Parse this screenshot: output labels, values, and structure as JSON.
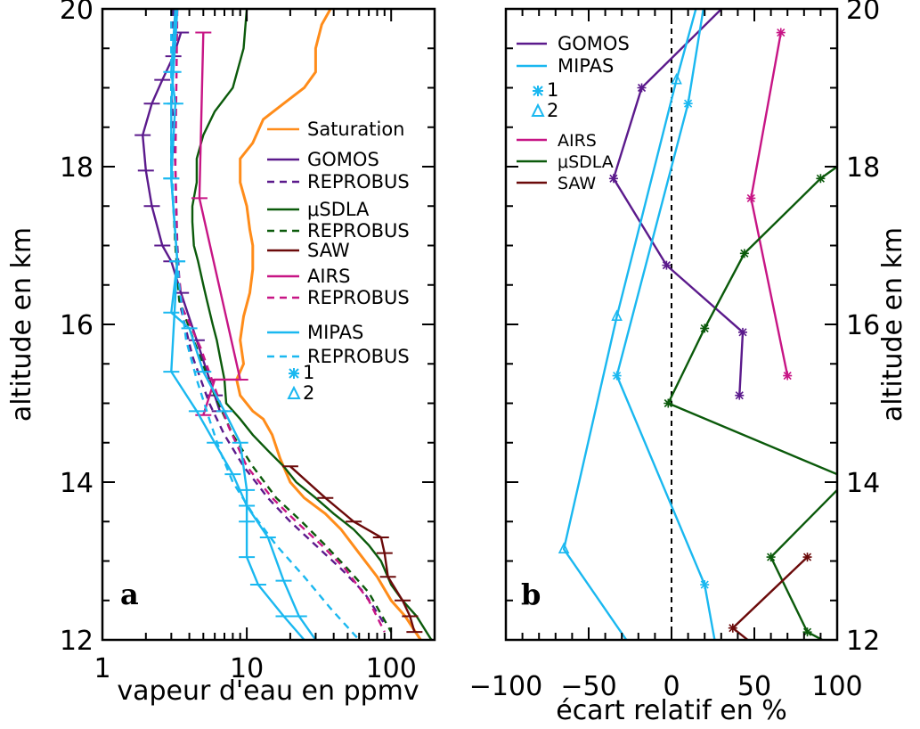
{
  "chart_data": [
    {
      "type": "line",
      "panel_label": "a",
      "xlabel": "vapeur d'eau en ppmv",
      "ylabel": "altitude en km",
      "xscale": "log",
      "xlim": [
        1,
        200
      ],
      "ylim": [
        12,
        20
      ],
      "x_ticks": [
        "1",
        "10",
        "100"
      ],
      "y_ticks": [
        "12",
        "14",
        "16",
        "18",
        "20"
      ],
      "legend_position": "right",
      "legend": [
        "Saturation",
        "GOMOS",
        "REPROBUS",
        "μSDLA",
        "REPROBUS",
        "SAW",
        "AIRS",
        "REPROBUS",
        "MIPAS",
        "REPROBUS",
        "1",
        "2"
      ],
      "series": [
        {
          "name": "Saturation",
          "color": "#ff8c1a",
          "style": "solid",
          "points": [
            [
              38,
              20
            ],
            [
              33,
              19.8
            ],
            [
              30,
              19.5
            ],
            [
              30,
              19.2
            ],
            [
              25,
              19.0
            ],
            [
              18,
              18.8
            ],
            [
              13,
              18.6
            ],
            [
              11,
              18.3
            ],
            [
              9,
              18.1
            ],
            [
              9,
              17.8
            ],
            [
              10,
              17.5
            ],
            [
              10.5,
              17.2
            ],
            [
              11,
              17.0
            ],
            [
              11,
              16.7
            ],
            [
              10.5,
              16.4
            ],
            [
              9.5,
              16.1
            ],
            [
              9,
              15.8
            ],
            [
              9.5,
              15.5
            ],
            [
              8.5,
              15.3
            ],
            [
              9,
              15.1
            ],
            [
              11,
              14.9
            ],
            [
              13,
              14.8
            ],
            [
              15,
              14.6
            ],
            [
              17,
              14.3
            ],
            [
              20,
              14.0
            ],
            [
              25,
              13.8
            ],
            [
              35,
              13.6
            ],
            [
              45,
              13.4
            ],
            [
              60,
              13.1
            ],
            [
              80,
              12.8
            ],
            [
              100,
              12.5
            ],
            [
              125,
              12.3
            ],
            [
              160,
              12.0
            ]
          ]
        },
        {
          "name": "μSDLA",
          "color": "#0b5a0b",
          "style": "solid",
          "points": [
            [
              10,
              20
            ],
            [
              9.5,
              19.5
            ],
            [
              8,
              19.0
            ],
            [
              6,
              18.7
            ],
            [
              5,
              18.4
            ],
            [
              4.5,
              18.1
            ],
            [
              4.5,
              17.8
            ],
            [
              4.2,
              17.5
            ],
            [
              4.2,
              17.3
            ],
            [
              4.3,
              17.0
            ],
            [
              4.6,
              16.8
            ],
            [
              5,
              16.5
            ],
            [
              5.3,
              16.3
            ],
            [
              5.8,
              16.0
            ],
            [
              6.2,
              15.8
            ],
            [
              6.5,
              15.6
            ],
            [
              7,
              15.3
            ],
            [
              7.2,
              15.0
            ],
            [
              9,
              14.8
            ],
            [
              11,
              14.6
            ],
            [
              14,
              14.4
            ],
            [
              18,
              14.2
            ],
            [
              22,
              14.0
            ],
            [
              30,
              13.8
            ],
            [
              40,
              13.6
            ],
            [
              55,
              13.4
            ],
            [
              70,
              13.2
            ],
            [
              85,
              13.0
            ],
            [
              100,
              12.7
            ],
            [
              120,
              12.5
            ],
            [
              150,
              12.3
            ],
            [
              190,
              12.0
            ]
          ]
        },
        {
          "name": "GOMOS",
          "color": "#5b1a8c",
          "style": "solid",
          "points": [
            [
              3.5,
              19.7
            ],
            [
              3.1,
              19.4
            ],
            [
              2.6,
              19.1
            ],
            [
              2.2,
              18.8
            ],
            [
              1.9,
              18.4
            ],
            [
              2.0,
              17.95
            ],
            [
              2.2,
              17.5
            ],
            [
              2.6,
              17.0
            ],
            [
              3.0,
              16.8
            ],
            [
              3.5,
              16.4
            ],
            [
              4.5,
              15.8
            ],
            [
              6.0,
              15.1
            ],
            [
              6.5,
              14.9
            ]
          ]
        },
        {
          "name": "REPROBUS (GOMOS)",
          "color": "#5b1a8c",
          "style": "dashed",
          "points": [
            [
              3.1,
              20
            ],
            [
              3.0,
              19.0
            ],
            [
              3.2,
              18.0
            ],
            [
              3.3,
              17.0
            ],
            [
              3.5,
              16.2
            ],
            [
              4.2,
              15.6
            ],
            [
              5.5,
              15.0
            ],
            [
              7,
              14.6
            ],
            [
              9.5,
              14.2
            ],
            [
              14,
              13.8
            ],
            [
              20,
              13.5
            ],
            [
              30,
              13.2
            ],
            [
              45,
              12.9
            ],
            [
              65,
              12.6
            ],
            [
              90,
              12.2
            ]
          ]
        },
        {
          "name": "SAW",
          "color": "#6b0a0a",
          "style": "solid",
          "points": [
            [
              20,
              14.2
            ],
            [
              35,
              13.8
            ],
            [
              55,
              13.5
            ],
            [
              85,
              13.3
            ],
            [
              90,
              13.1
            ],
            [
              95,
              12.8
            ],
            [
              120,
              12.5
            ],
            [
              135,
              12.3
            ],
            [
              145,
              12.1
            ]
          ]
        },
        {
          "name": "REPROBUS (μSDLA)",
          "color": "#0b5a0b",
          "style": "dashed",
          "points": [
            [
              3.2,
              20
            ],
            [
              3.0,
              19.0
            ],
            [
              3.0,
              18.0
            ],
            [
              3.2,
              17.0
            ],
            [
              3.4,
              16.3
            ],
            [
              4.5,
              15.7
            ],
            [
              6,
              15.1
            ],
            [
              8,
              14.6
            ],
            [
              11,
              14.2
            ],
            [
              16,
              13.8
            ],
            [
              24,
              13.5
            ],
            [
              35,
              13.2
            ],
            [
              50,
              12.9
            ],
            [
              70,
              12.6
            ],
            [
              100,
              12.1
            ]
          ]
        },
        {
          "name": "AIRS",
          "color": "#c71585",
          "style": "solid",
          "points": [
            [
              5,
              19.7
            ],
            [
              4.7,
              17.6
            ],
            [
              9,
              15.3
            ],
            [
              6,
              15.3
            ],
            [
              5,
              14.85
            ]
          ]
        },
        {
          "name": "REPROBUS (AIRS)",
          "color": "#c71585",
          "style": "dashed",
          "points": [
            [
              3.3,
              20
            ],
            [
              3.2,
              18.0
            ],
            [
              3.3,
              16.8
            ],
            [
              3.6,
              16.2
            ],
            [
              4.8,
              15.7
            ],
            [
              6,
              15.2
            ],
            [
              7.5,
              14.7
            ],
            [
              10,
              14.2
            ],
            [
              15,
              13.8
            ],
            [
              22,
              13.5
            ],
            [
              33,
              13.2
            ],
            [
              48,
              12.9
            ],
            [
              70,
              12.5
            ],
            [
              90,
              12.1
            ]
          ]
        },
        {
          "name": "MIPAS 1",
          "color": "#1ab8f0",
          "style": "solid",
          "points": [
            [
              3.2,
              20
            ],
            [
              3.0,
              19.2
            ],
            [
              3.2,
              18.8
            ],
            [
              3.0,
              17.85
            ],
            [
              3.3,
              16.8
            ],
            [
              3.0,
              15.4
            ],
            [
              4.5,
              14.9
            ],
            [
              6,
              14.5
            ],
            [
              8,
              14.1
            ],
            [
              10,
              13.7
            ],
            [
              14,
              13.3
            ],
            [
              18,
              12.75
            ],
            [
              23,
              12.3
            ],
            [
              30,
              12.0
            ]
          ]
        },
        {
          "name": "MIPAS 2",
          "color": "#1ab8f0",
          "style": "solid",
          "points": [
            [
              3.3,
              20
            ],
            [
              3.1,
              19.2
            ],
            [
              3.0,
              18.8
            ],
            [
              3.0,
              17.85
            ],
            [
              3.3,
              16.8
            ],
            [
              3.0,
              16.15
            ],
            [
              4.0,
              15.95
            ],
            [
              5,
              15.4
            ],
            [
              7,
              14.9
            ],
            [
              9,
              14.5
            ],
            [
              10,
              13.9
            ],
            [
              10,
              13.5
            ],
            [
              10,
              13.05
            ],
            [
              12,
              12.7
            ],
            [
              18,
              12.3
            ],
            [
              25,
              12.0
            ]
          ]
        },
        {
          "name": "REPROBUS (MIPAS)",
          "color": "#1ab8f0",
          "style": "dashed",
          "points": [
            [
              3.0,
              20
            ],
            [
              3.0,
              18.5
            ],
            [
              3.1,
              17.5
            ],
            [
              3.4,
              16.5
            ],
            [
              3.8,
              15.8
            ],
            [
              4.5,
              15.3
            ],
            [
              5.5,
              14.8
            ],
            [
              6.5,
              14.4
            ],
            [
              8,
              14.0
            ],
            [
              11,
              13.6
            ],
            [
              16,
              13.2
            ],
            [
              25,
              12.8
            ],
            [
              38,
              12.4
            ],
            [
              60,
              12.0
            ]
          ]
        }
      ]
    },
    {
      "type": "line",
      "panel_label": "b",
      "xlabel": "écart relatif en %",
      "ylabel": "altitude en km",
      "xlim": [
        -100,
        100
      ],
      "ylim": [
        12,
        20
      ],
      "x_ticks": [
        "−100",
        "−50",
        "0",
        "50",
        "100"
      ],
      "y_ticks": [
        "12",
        "14",
        "16",
        "18",
        "20"
      ],
      "reference_line": "x = 0 (dashed)",
      "legend_position": "top-left",
      "legend": [
        "GOMOS",
        "MIPAS",
        "1",
        "2",
        "AIRS",
        "μSDLA",
        "SAW"
      ],
      "series": [
        {
          "name": "GOMOS",
          "color": "#5b1a8c",
          "points": [
            [
              35,
              20.1
            ],
            [
              -18,
              19.0
            ],
            [
              -35,
              17.85
            ],
            [
              -3,
              16.75
            ],
            [
              43,
              15.9
            ],
            [
              41,
              15.1
            ]
          ]
        },
        {
          "name": "AIRS",
          "color": "#c71585",
          "points": [
            [
              66,
              19.7
            ],
            [
              48,
              17.6
            ],
            [
              70,
              15.35
            ]
          ]
        },
        {
          "name": "μSDLA",
          "color": "#0b5a0b",
          "points": [
            [
              100,
              18.0
            ],
            [
              90,
              17.85
            ],
            [
              44,
              16.9
            ],
            [
              20,
              15.95
            ],
            [
              -2,
              15.0
            ],
            [
              100,
              14.1
            ]
          ]
        },
        {
          "name": "μSDLA (lower)",
          "color": "#0b5a0b",
          "points": [
            [
              100,
              13.9
            ],
            [
              60,
              13.05
            ],
            [
              82,
              12.1
            ],
            [
              100,
              11.9
            ]
          ]
        },
        {
          "name": "SAW",
          "color": "#6b0a0a",
          "points": [
            [
              82,
              13.05
            ],
            [
              37,
              12.15
            ],
            [
              52,
              11.9
            ]
          ]
        },
        {
          "name": "MIPAS 1",
          "color": "#1ab8f0",
          "points": [
            [
              20,
              20.1
            ],
            [
              10,
              18.8
            ],
            [
              -33,
              15.35
            ],
            [
              20,
              12.7
            ],
            [
              26,
              12.0
            ]
          ]
        },
        {
          "name": "MIPAS 2",
          "color": "#1ab8f0",
          "points": [
            [
              16,
              20.1
            ],
            [
              3,
              19.1
            ],
            [
              -33,
              16.1
            ],
            [
              -65,
              13.15
            ],
            [
              -24,
              11.9
            ]
          ]
        }
      ]
    }
  ]
}
